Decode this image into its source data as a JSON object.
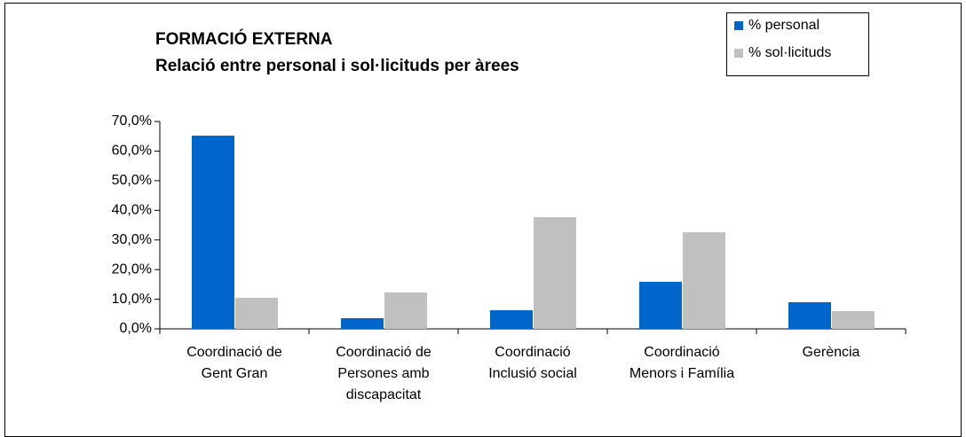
{
  "chart_data": {
    "type": "bar",
    "title": "FORMACIÓ EXTERNA",
    "subtitle": "Relació entre personal i sol·licituds per àrees",
    "categories": [
      [
        "Coordinació de",
        "Gent Gran"
      ],
      [
        "Coordinació de",
        "Persones amb",
        "discapacitat"
      ],
      [
        "Coordinació",
        "Inclusió social"
      ],
      [
        "Coordinació",
        "Menors i Família"
      ],
      [
        "Gerència"
      ]
    ],
    "series": [
      {
        "name": "% personal",
        "color": "#0066cc",
        "values": [
          65.2,
          3.6,
          6.3,
          15.9,
          9.0
        ]
      },
      {
        "name": "% sol·licituds",
        "color": "#c0c0c0",
        "values": [
          10.5,
          12.3,
          37.7,
          32.6,
          6.0
        ]
      }
    ],
    "ylim": [
      0,
      70
    ],
    "yticks": [
      {
        "value": 0,
        "label": "0,0%"
      },
      {
        "value": 10,
        "label": "10,0%"
      },
      {
        "value": 20,
        "label": "20,0%"
      },
      {
        "value": 30,
        "label": "30,0%"
      },
      {
        "value": 40,
        "label": "40,0%"
      },
      {
        "value": 50,
        "label": "50,0%"
      },
      {
        "value": 60,
        "label": "60,0%"
      },
      {
        "value": 70,
        "label": "70,0%"
      }
    ],
    "grid": false,
    "legend": "top-right"
  }
}
